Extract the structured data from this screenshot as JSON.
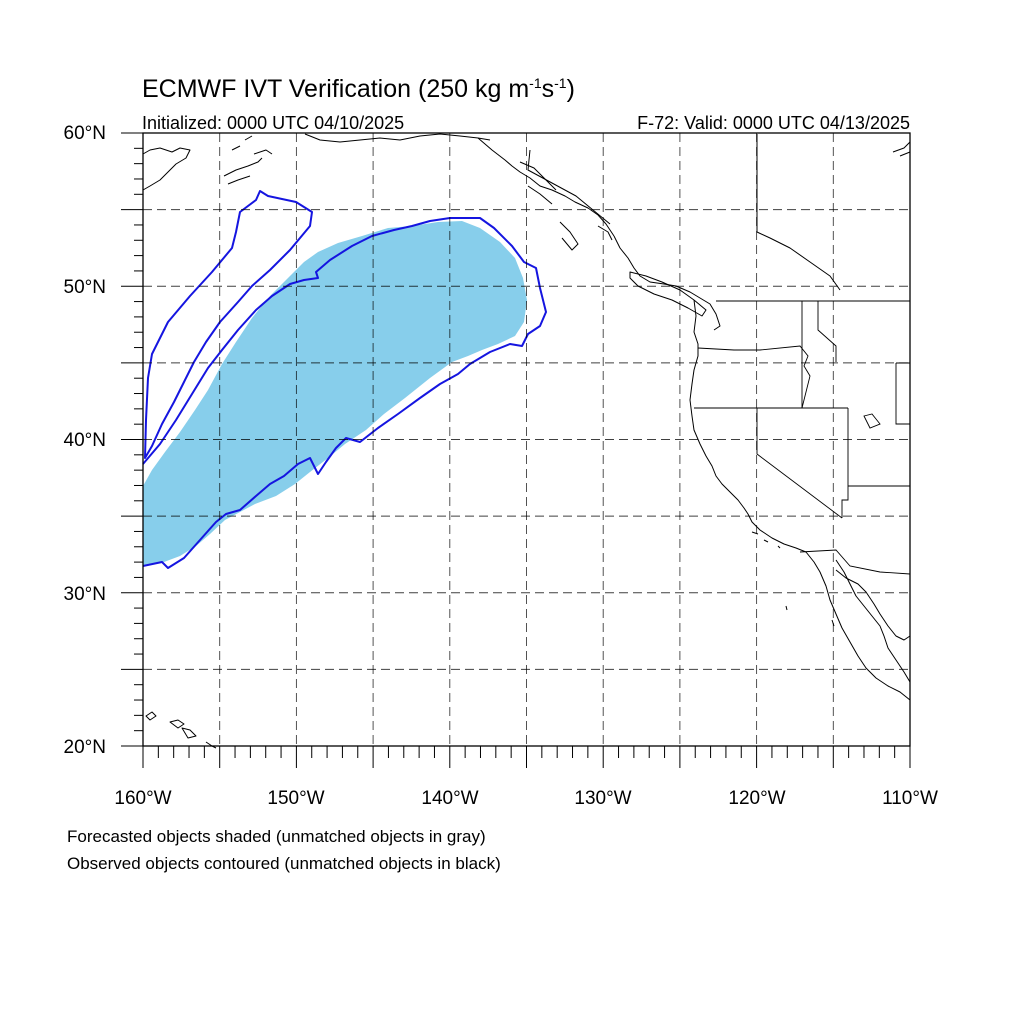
{
  "title": {
    "main": "ECMWF IVT Verification (250 kg m",
    "exp1": "-1",
    "mid": "s",
    "exp2": "-1",
    "end": ")"
  },
  "subtitle": {
    "left": "Initialized: 0000 UTC 04/10/2025",
    "right": "F-72: Valid: 0000 UTC 04/13/2025"
  },
  "axes": {
    "lon_labels": [
      "160°W",
      "150°W",
      "140°W",
      "130°W",
      "120°W",
      "110°W"
    ],
    "lat_labels": [
      "60°N",
      "50°N",
      "40°N",
      "30°N",
      "20°N"
    ]
  },
  "notes": {
    "line1": "Forecasted objects shaded (unmatched objects in gray)",
    "line2": "Observed objects contoured (unmatched objects in black)"
  },
  "colors": {
    "forecast_fill": "#87CEEB",
    "observed_contour": "#1515E0",
    "coastline": "#000000"
  },
  "map": {
    "lon_range": [
      -160,
      -110
    ],
    "lat_range": [
      20,
      60
    ],
    "grid_lon_step": 5,
    "grid_lat_step": 5
  }
}
